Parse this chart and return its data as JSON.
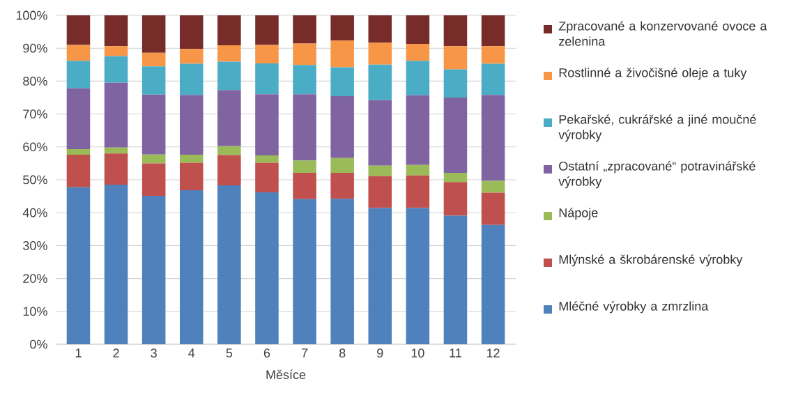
{
  "chart_data": {
    "type": "bar",
    "stacked": true,
    "xlabel": "Měsíce",
    "categories": [
      "1",
      "2",
      "3",
      "4",
      "5",
      "6",
      "7",
      "8",
      "9",
      "10",
      "11",
      "12"
    ],
    "ylim": [
      0,
      100
    ],
    "yticks": [
      {
        "value": 0,
        "label": "0%"
      },
      {
        "value": 10,
        "label": "10%"
      },
      {
        "value": 20,
        "label": "20%"
      },
      {
        "value": 30,
        "label": "30%"
      },
      {
        "value": 40,
        "label": "40%"
      },
      {
        "value": 50,
        "label": "50%"
      },
      {
        "value": 60,
        "label": "60%"
      },
      {
        "value": 70,
        "label": "70%"
      },
      {
        "value": 80,
        "label": "80%"
      },
      {
        "value": 90,
        "label": "90%"
      },
      {
        "value": 100,
        "label": "100%"
      }
    ],
    "grid": "y",
    "legend": "right",
    "series": [
      {
        "name": "Mléčné výrobky a zmrzlina",
        "color": "#4f81bd",
        "values": [
          47.7,
          48.5,
          45.1,
          46.8,
          48.3,
          46.2,
          44.1,
          44.2,
          41.4,
          41.4,
          39.1,
          36.3
        ]
      },
      {
        "name": "Mlýnské a škrobárenské výrobky",
        "color": "#c0504d",
        "values": [
          9.9,
          9.5,
          9.9,
          8.4,
          9.2,
          9.0,
          8.0,
          7.9,
          9.7,
          9.9,
          10.2,
          9.8
        ]
      },
      {
        "name": "Nápoje",
        "color": "#9bbb59",
        "values": [
          1.7,
          1.8,
          2.7,
          2.4,
          2.7,
          2.2,
          3.8,
          4.5,
          3.2,
          3.2,
          2.8,
          3.6
        ]
      },
      {
        "name": "Ostatní „zpracované“ potravinářské výrobky",
        "color": "#8064a2",
        "values": [
          18.5,
          19.7,
          18.2,
          18.2,
          17.1,
          18.6,
          20.1,
          18.8,
          19.9,
          21.2,
          22.9,
          26.1
        ]
      },
      {
        "name": "Pekařské, cukrářské a jiné moučné výrobky",
        "color": "#4bacc6",
        "values": [
          8.4,
          8.1,
          8.6,
          9.5,
          8.6,
          9.4,
          8.9,
          8.8,
          10.8,
          10.5,
          8.6,
          9.5
        ]
      },
      {
        "name": "Rostlinné a živočišné oleje a tuky",
        "color": "#f79646",
        "values": [
          4.8,
          3.0,
          4.1,
          4.5,
          5.0,
          5.6,
          6.5,
          8.1,
          6.7,
          5.1,
          7.0,
          5.3
        ]
      },
      {
        "name": "Zpracované a konzervované ovoce a zelenina",
        "color": "#772c2a",
        "values": [
          9.0,
          9.4,
          11.4,
          10.2,
          9.1,
          9.0,
          8.6,
          7.7,
          8.3,
          8.7,
          9.4,
          9.4
        ]
      }
    ]
  }
}
